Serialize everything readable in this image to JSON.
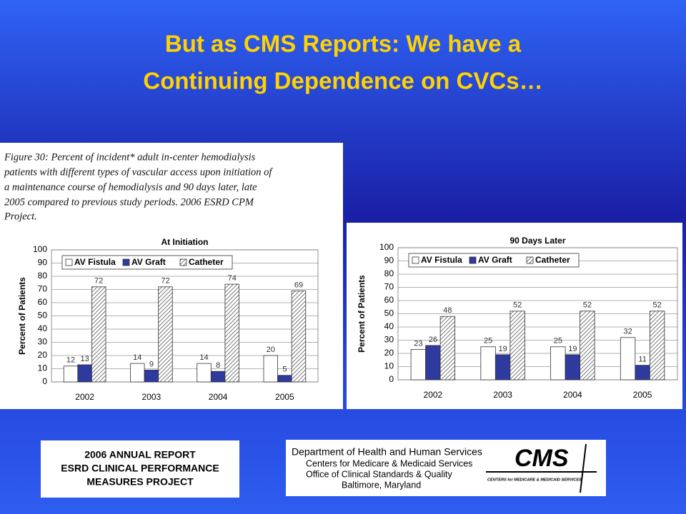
{
  "title": [
    "But as CMS Reports: We have a",
    "Continuing Dependence on CVCs…"
  ],
  "caption": [
    "Figure 30: Percent of incident* adult in-center hemodialysis",
    "patients with different types of vascular access upon initiation of",
    "a maintenance course of hemodialysis and 90 days later, late",
    "2005 compared to previous study periods. 2006 ESRD CPM",
    "Project."
  ],
  "chart_data": [
    {
      "type": "bar",
      "title": "At Initiation",
      "y_label": "Percent of Patients",
      "categories": [
        "2002",
        "2003",
        "2004",
        "2005"
      ],
      "series": [
        {
          "name": "AV Fistula",
          "color": "#ffffff",
          "values": [
            12,
            14,
            14,
            20
          ]
        },
        {
          "name": "AV Graft",
          "color": "#2e3a9e",
          "values": [
            13,
            9,
            8,
            5
          ]
        },
        {
          "name": "Catheter",
          "color": "#ffffff",
          "pattern": "hatch",
          "values": [
            72,
            72,
            74,
            69
          ]
        }
      ],
      "ylim": [
        0,
        100
      ],
      "yticks": [
        0,
        10,
        20,
        30,
        40,
        50,
        60,
        70,
        80,
        90,
        100
      ],
      "grid": true,
      "legend": "upper left"
    },
    {
      "type": "bar",
      "title": "90 Days Later",
      "y_label": "Percent of Patients",
      "categories": [
        "2002",
        "2003",
        "2004",
        "2005"
      ],
      "series": [
        {
          "name": "AV Fistula",
          "color": "#ffffff",
          "values": [
            23,
            25,
            25,
            32
          ]
        },
        {
          "name": "AV Graft",
          "color": "#2e3a9e",
          "values": [
            26,
            19,
            19,
            11
          ]
        },
        {
          "name": "Catheter",
          "color": "#ffffff",
          "pattern": "hatch",
          "values": [
            48,
            52,
            52,
            52
          ]
        }
      ],
      "ylim": [
        0,
        100
      ],
      "yticks": [
        0,
        10,
        20,
        30,
        40,
        50,
        60,
        70,
        80,
        90,
        100
      ],
      "grid": true,
      "legend": "upper left"
    }
  ],
  "footer_left": [
    "2006 ANNUAL REPORT",
    "ESRD CLINICAL PERFORMANCE",
    "MEASURES PROJECT"
  ],
  "footer_right": {
    "lines": [
      "Department of Health and Human Services",
      "Centers for Medicare & Medicaid Services",
      "Office of Clinical Standards & Quality",
      "Baltimore, Maryland"
    ],
    "logo": "CMS",
    "logo_sub": "CENTERS for MEDICARE & MEDICAID SERVICES"
  }
}
